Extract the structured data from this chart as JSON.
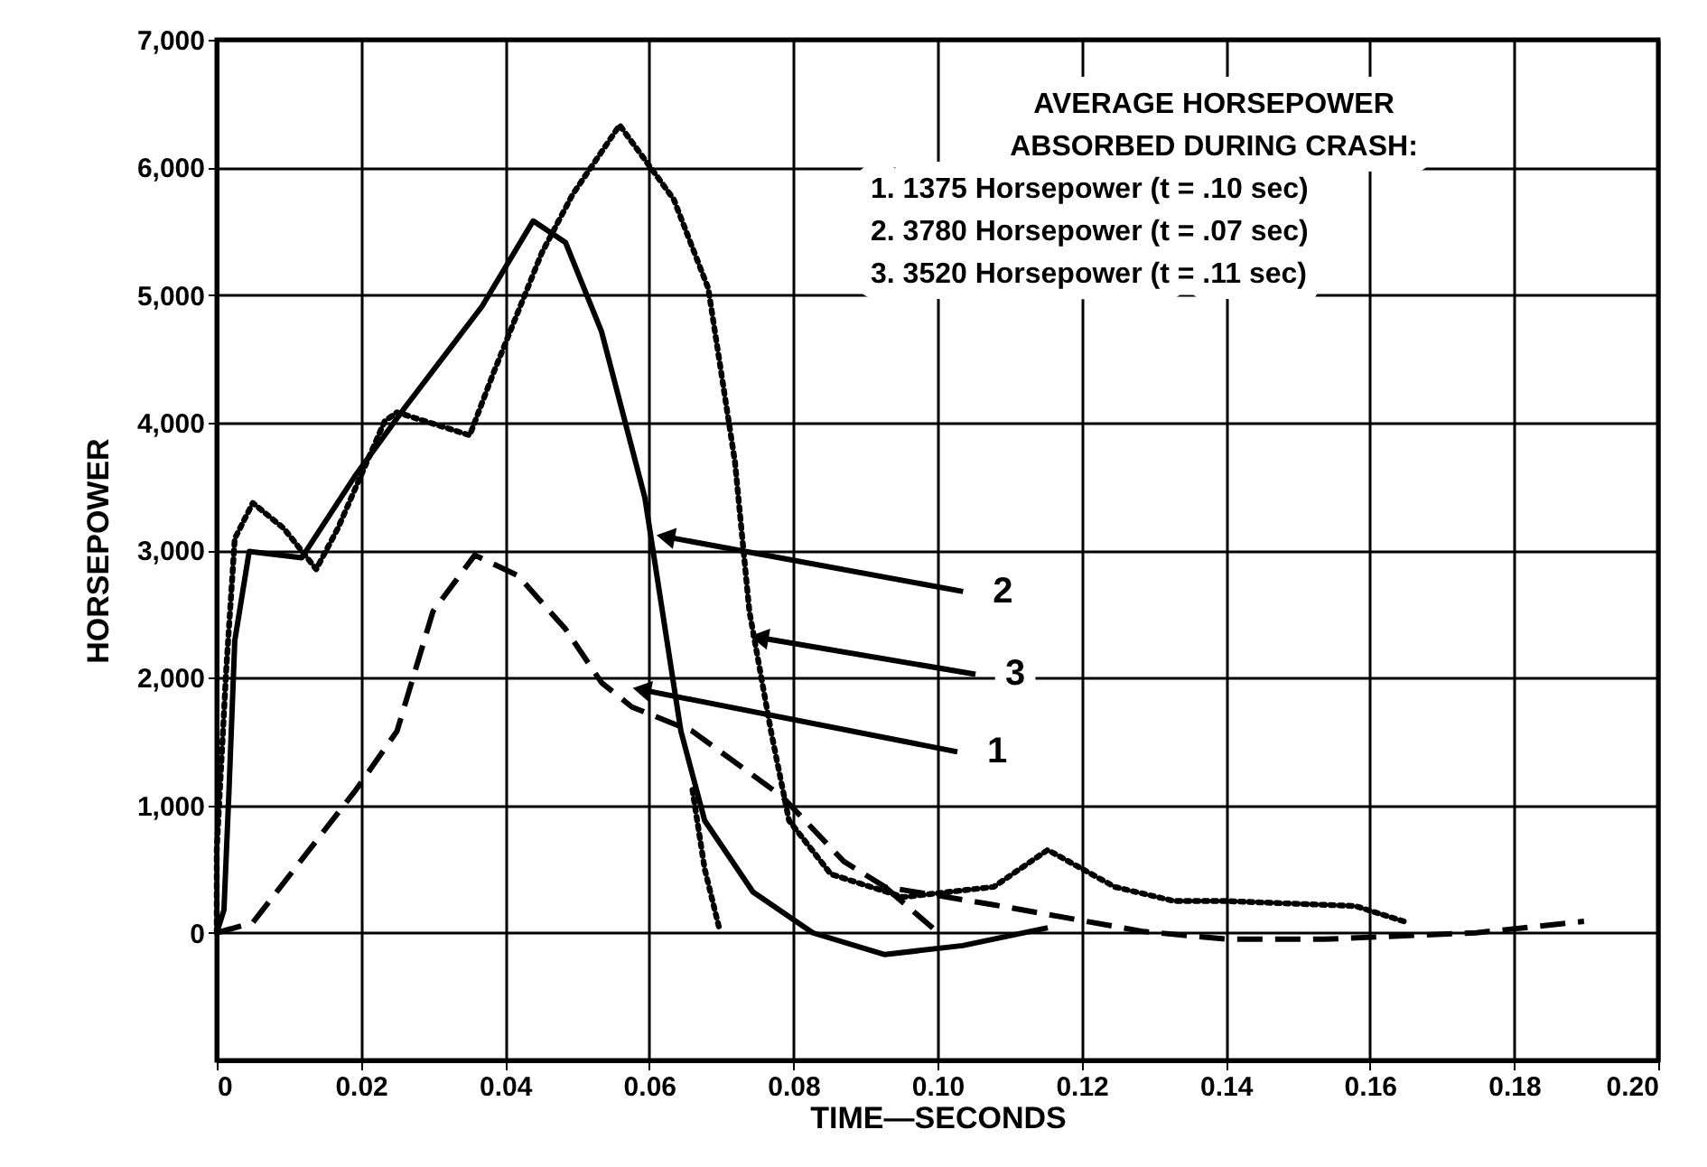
{
  "chart_data": {
    "type": "line",
    "xlabel": "TIME—SECONDS",
    "ylabel": "HORSEPOWER",
    "xlim": [
      0,
      0.2
    ],
    "ylim": [
      -1000,
      7000
    ],
    "xticks": [
      0,
      0.02,
      0.04,
      0.06,
      0.08,
      {
        "value": 0.1,
        "label": "0.10"
      },
      0.12,
      0.14,
      0.16,
      0.18,
      {
        "value": 0.2,
        "label": "0.20"
      }
    ],
    "yticks": [
      0,
      {
        "value": 1000,
        "label": "1,000"
      },
      {
        "value": 2000,
        "label": "2,000"
      },
      {
        "value": 3000,
        "label": "3,000"
      },
      {
        "value": 4000,
        "label": "4,000"
      },
      {
        "value": 5000,
        "label": "5,000"
      },
      {
        "value": 6000,
        "label": "6,000"
      },
      {
        "value": 7000,
        "label": "7,000"
      }
    ],
    "grid": true,
    "marker": "none",
    "series": [
      {
        "color": "#000000",
        "line_style": "dashed",
        "x": [
          0,
          0.005,
          0.0193,
          0.025,
          0.03,
          0.0358,
          0.0418,
          0.0484,
          0.0534,
          0.0576,
          0.066,
          0.0784,
          0.087,
          0.0927,
          0.1078,
          0.1286,
          0.1404,
          0.1536,
          0.1747,
          0.1897
        ],
        "values": [
          0,
          80,
          1120,
          1580,
          2520,
          2960,
          2800,
          2380,
          1960,
          1770,
          1580,
          1070,
          560,
          360,
          220,
          10,
          -50,
          -50,
          0,
          90
        ]
      },
      {
        "color": "#000000",
        "line_style": "dashed",
        "x": [
          0.0927,
          0.0995
        ],
        "values": [
          360,
          30
        ]
      },
      {
        "color": "#000000",
        "line_style": "solid",
        "x": [
          0,
          0.001,
          0.0017,
          0.0025,
          0.0045,
          0.0118,
          0.0193,
          0.026,
          0.0368,
          0.0439,
          0.0484,
          0.0534,
          0.0594,
          0.0644,
          0.0677,
          0.0744,
          0.0827,
          0.0927,
          0.1035,
          0.1153
        ],
        "values": [
          0,
          180,
          1120,
          2290,
          2990,
          2940,
          3590,
          4110,
          4910,
          5580,
          5410,
          4710,
          3410,
          1580,
          880,
          320,
          0,
          -170,
          -100,
          40
        ]
      },
      {
        "color": "#000000",
        "line_style": "dotted",
        "x": [
          0,
          0.0,
          0.0013,
          0.0025,
          0.005,
          0.0093,
          0.0138,
          0.0168,
          0.0233,
          0.025,
          0.0351,
          0.0384,
          0.0451,
          0.0494,
          0.0559,
          0.0634,
          0.0682,
          0.0719,
          0.0739,
          0.0769,
          0.0794,
          0.0852,
          0.0952,
          0.1078,
          0.1153,
          0.1246,
          0.1328,
          0.1396,
          0.158,
          0.1647
        ],
        "values": [
          0,
          650,
          2050,
          3090,
          3370,
          3170,
          2850,
          3170,
          4010,
          4080,
          3900,
          4390,
          5330,
          5790,
          6330,
          5750,
          5050,
          3690,
          2520,
          1580,
          880,
          460,
          280,
          360,
          650,
          360,
          250,
          250,
          210,
          90
        ]
      },
      {
        "color": "#000000",
        "line_style": "dotted",
        "x": [
          0.066,
          0.0677,
          0.0697
        ],
        "values": [
          1120,
          500,
          40
        ]
      }
    ],
    "annotations": [
      "AVERAGE HORSEPOWER ABSORBED DURING CRASH:",
      "1.  1375 Horsepower (t = .10 sec)",
      "2.  3780 Horsepower (t = .07 sec)",
      "3.  3520 Horsepower (t = .11 sec)",
      {
        "text": "2",
        "x": 0.0627,
        "y": 3100
      },
      {
        "text": "3",
        "x": 0.0757,
        "y": 2310
      },
      {
        "text": "1",
        "x": 0.0594,
        "y": 1900
      }
    ]
  }
}
